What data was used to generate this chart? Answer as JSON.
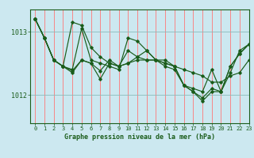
{
  "xlabel": "Graphe pression niveau de la mer (hPa)",
  "bg_color": "#cce8f0",
  "line_color": "#1a5c1a",
  "xlim": [
    -0.5,
    23
  ],
  "ylim": [
    1011.55,
    1013.35
  ],
  "yticks": [
    1012,
    1013
  ],
  "xticks": [
    0,
    1,
    2,
    3,
    4,
    5,
    6,
    7,
    8,
    9,
    10,
    11,
    12,
    13,
    14,
    15,
    16,
    17,
    18,
    19,
    20,
    21,
    22,
    23
  ],
  "series": [
    [
      1013.2,
      1012.9,
      1012.55,
      1012.45,
      1013.15,
      1013.1,
      1012.75,
      1012.6,
      1012.5,
      1012.45,
      1012.7,
      1012.6,
      1012.7,
      1012.55,
      1012.55,
      1012.45,
      1012.4,
      1012.35,
      1012.3,
      1012.2,
      1012.2,
      1012.3,
      1012.35,
      1012.55
    ],
    [
      1013.2,
      1012.9,
      1012.55,
      1012.45,
      1012.4,
      1013.05,
      1012.55,
      1012.5,
      1012.45,
      1012.4,
      1012.9,
      1012.85,
      1012.7,
      1012.55,
      1012.45,
      1012.4,
      1012.15,
      1012.1,
      1012.05,
      1012.4,
      1012.05,
      1012.35,
      1012.7,
      1012.8
    ],
    [
      1013.2,
      1012.9,
      1012.55,
      1012.45,
      1012.35,
      1012.55,
      1012.5,
      1012.25,
      1012.5,
      1012.45,
      1012.5,
      1012.55,
      1012.55,
      1012.55,
      1012.5,
      1012.45,
      1012.15,
      1012.05,
      1011.9,
      1012.05,
      1012.05,
      1012.45,
      1012.65,
      1012.8
    ],
    [
      1013.2,
      1012.9,
      1012.55,
      1012.45,
      1012.38,
      1012.55,
      1012.5,
      1012.38,
      1012.55,
      1012.45,
      1012.5,
      1012.6,
      1012.55,
      1012.55,
      1012.5,
      1012.45,
      1012.15,
      1012.05,
      1011.95,
      1012.1,
      1012.05,
      1012.45,
      1012.65,
      1012.8
    ]
  ]
}
